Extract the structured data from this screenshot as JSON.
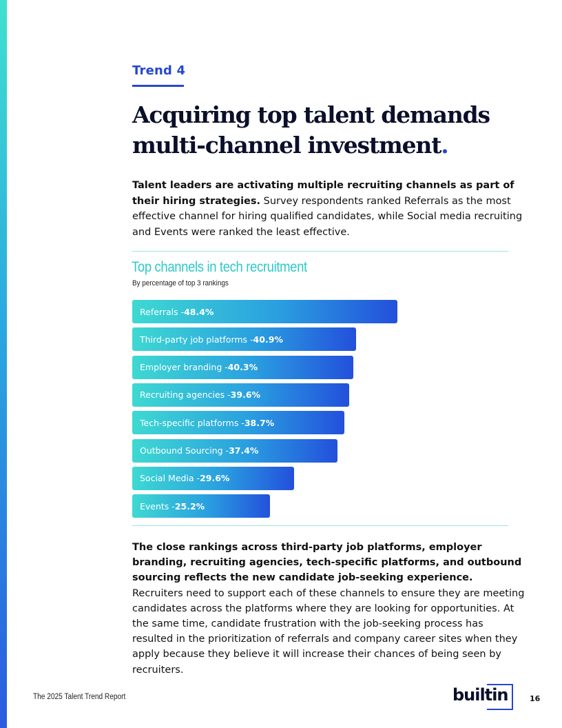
{
  "trend_label": "Trend 4",
  "headline": {
    "line1": "Acquiring top talent demands",
    "line2": "multi-channel investment",
    "dot": "."
  },
  "intro": {
    "bold": "Talent leaders are activating multiple recruiting channels as part of their hiring strategies.",
    "text": " Survey respondents ranked Referrals as the most effective channel for hiring qualified candidates, while Social media recruiting and Events were ranked the least effective."
  },
  "chart_data": {
    "type": "bar",
    "orientation": "horizontal",
    "title": "Top channels in tech recruitment",
    "subtitle": "By percentage of top 3 rankings",
    "categories": [
      "Referrals",
      "Third-party job platforms",
      "Employer branding",
      "Recruiting agencies",
      "Tech-specific platforms",
      "Outbound Sourcing",
      "Social Media",
      "Events"
    ],
    "values": [
      48.4,
      40.9,
      40.3,
      39.6,
      38.7,
      37.4,
      29.6,
      25.2
    ],
    "value_labels": [
      "48.4%",
      "40.9%",
      "40.3%",
      "39.6%",
      "38.7%",
      "37.4%",
      "29.6%",
      "25.2%"
    ],
    "separator": " - ",
    "gradient": [
      "#3ed9d2",
      "#2a9fe0",
      "#2350dc"
    ]
  },
  "body": {
    "bold": "The close rankings across third-party job platforms, employer branding, recruiting agencies, tech-specific platforms, and outbound sourcing reflects the new candidate job-seeking experience.",
    "text": " Recruiters need to support each of these channels to ensure they are meeting candidates across the platforms where they are looking for opportunities. At the same time, candidate frustration with the job-seeking process has resulted in the prioritization of referrals and company career sites when they apply because they believe it will increase their chances of being seen by recruiters."
  },
  "footer": {
    "report_title": "The 2025 Talent Trend Report",
    "logo_text": "builtin",
    "page_number": "16"
  },
  "colors": {
    "accent": "#2547d0",
    "chart_title": "#2fc8c8"
  }
}
